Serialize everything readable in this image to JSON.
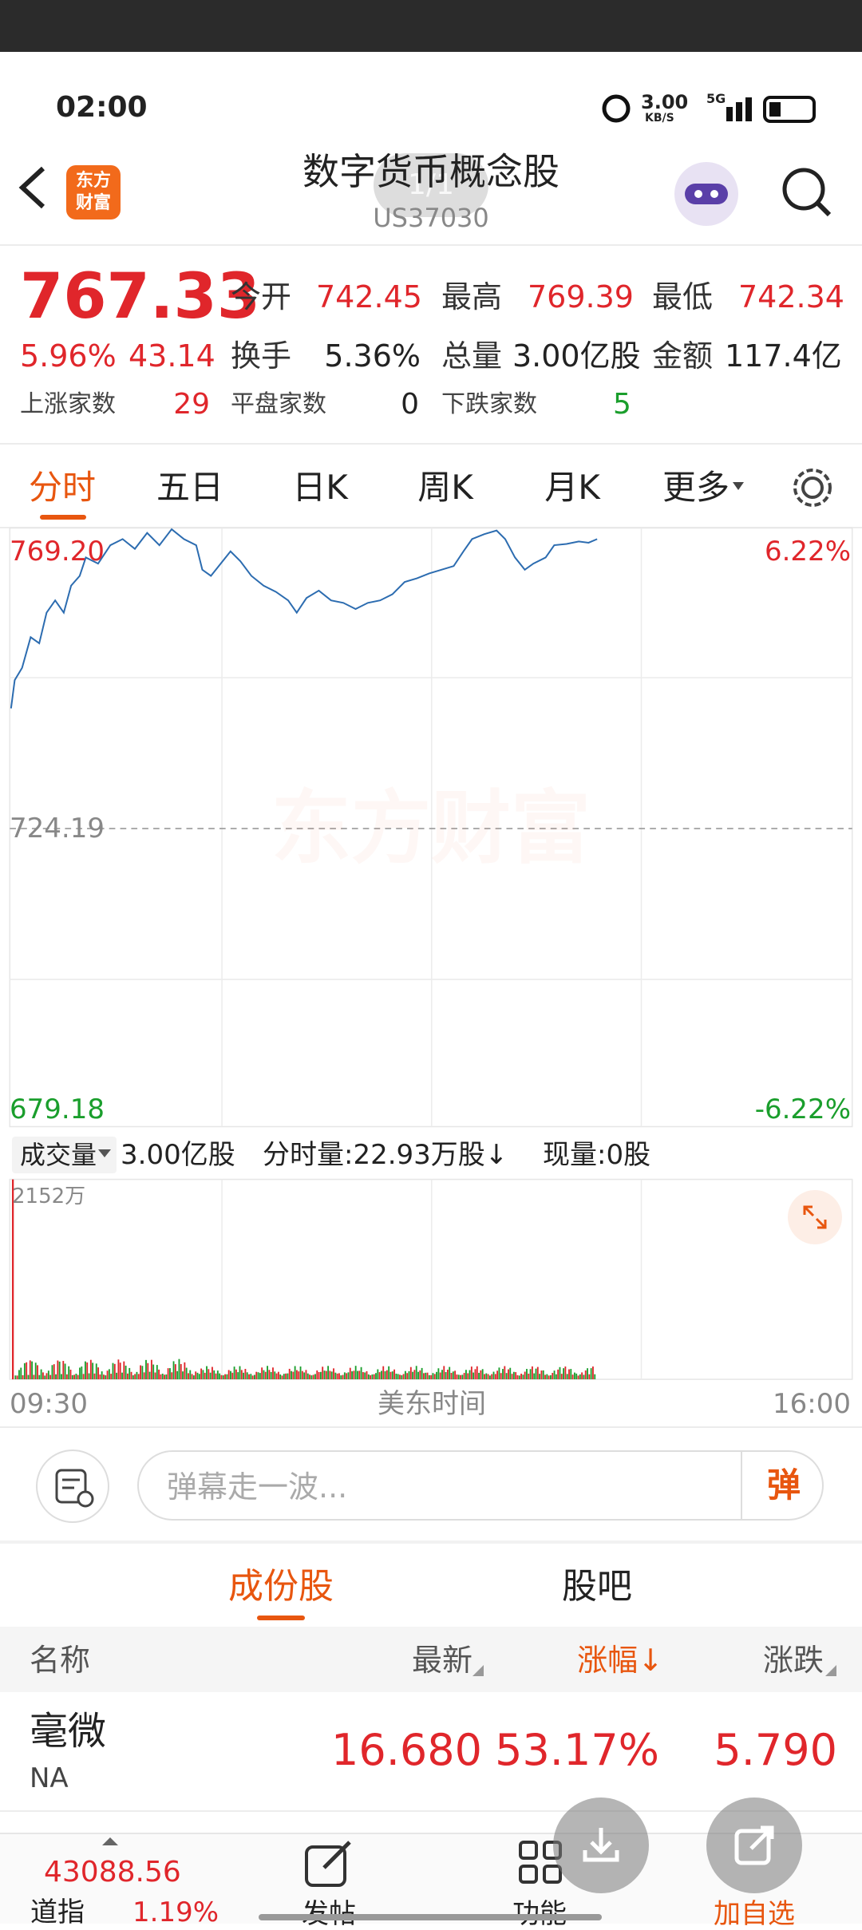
{
  "status": {
    "time": "02:00",
    "speed": "3.00",
    "speed_unit": "KB/S",
    "network": "5G"
  },
  "header": {
    "logo_top": "东方",
    "logo_bottom": "财富",
    "title": "数字货币概念股",
    "code": "US37030",
    "page_badge": "1/1"
  },
  "quote": {
    "price": "767.33",
    "change_pct": "5.96%",
    "change": "43.14",
    "fields": [
      {
        "label": "今开",
        "value": "742.45"
      },
      {
        "label": "最高",
        "value": "769.39"
      },
      {
        "label": "最低",
        "value": "742.34"
      },
      {
        "label": "换手",
        "value": "5.36%"
      },
      {
        "label": "总量",
        "value": "3.00亿股"
      },
      {
        "label": "金额",
        "value": "117.4亿"
      }
    ],
    "counts": [
      {
        "label": "上涨家数",
        "value": "29"
      },
      {
        "label": "平盘家数",
        "value": "0"
      },
      {
        "label": "下跌家数",
        "value": "5"
      }
    ]
  },
  "tabs": [
    "分时",
    "五日",
    "日K",
    "周K",
    "月K",
    "更多"
  ],
  "chart": {
    "high": "769.20",
    "high_pct": "6.22%",
    "mid": "724.19",
    "low": "679.18",
    "low_pct": "-6.22%",
    "watermark": "东方财富"
  },
  "volume": {
    "selector": "成交量",
    "total": "3.00亿股",
    "minute_volume": "分时量:22.93万股↓",
    "current": "现量:0股",
    "max": "2152万",
    "start_time": "09:30",
    "timezone": "美东时间",
    "end_time": "16:00"
  },
  "danmaku": {
    "placeholder": "弹幕走一波...",
    "button": "弹"
  },
  "section_tabs": [
    "成份股",
    "股吧"
  ],
  "table": {
    "headers": [
      "名称",
      "最新",
      "涨幅↓",
      "涨跌"
    ],
    "rows": [
      {
        "name": "毫微",
        "code": "NA",
        "latest": "16.680",
        "change_pct": "53.17%",
        "change": "5.790"
      }
    ]
  },
  "bottom_bar": {
    "index_value": "43088.56",
    "index_name": "道指",
    "index_change": "1.19%",
    "nav": [
      "发帖",
      "功能",
      "加自选"
    ]
  }
}
